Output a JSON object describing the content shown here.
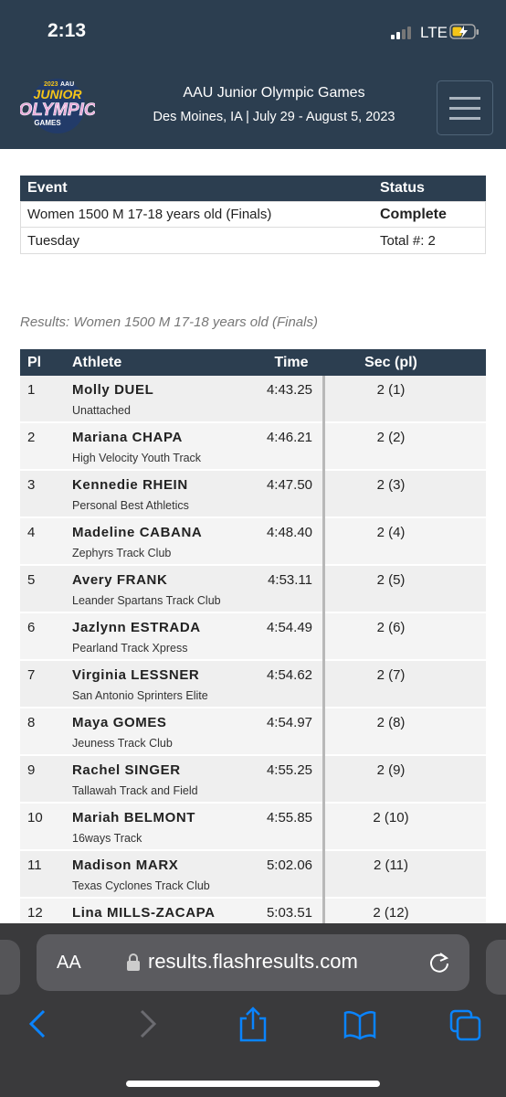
{
  "status_bar": {
    "time": "2:13",
    "network": "LTE"
  },
  "header": {
    "logo": {
      "year": "2023",
      "org": "AAU",
      "line1": "JUNIOR",
      "line2": "OLYMPIC",
      "line3": "GAMES"
    },
    "title": "AAU Junior Olympic Games",
    "subtitle": "Des Moines, IA | July 29 - August 5, 2023"
  },
  "event_table": {
    "headers": [
      "Event",
      "Status"
    ],
    "rows": [
      [
        "Women 1500 M 17-18 years old (Finals)",
        "Complete"
      ],
      [
        "Tuesday",
        "Total #: 2"
      ]
    ]
  },
  "results": {
    "caption": "Results: Women 1500 M 17-18 years old (Finals)",
    "headers": [
      "Pl",
      "Athlete",
      "Time",
      "Sec (pl)"
    ],
    "rows": [
      {
        "pl": "1",
        "athlete": "Molly DUEL",
        "team": "Unattached",
        "time": "4:43.25",
        "sec": "2 (1)"
      },
      {
        "pl": "2",
        "athlete": "Mariana CHAPA",
        "team": "High Velocity Youth Track",
        "time": "4:46.21",
        "sec": "2 (2)"
      },
      {
        "pl": "3",
        "athlete": "Kennedie RHEIN",
        "team": "Personal Best Athletics",
        "time": "4:47.50",
        "sec": "2 (3)"
      },
      {
        "pl": "4",
        "athlete": "Madeline CABANA",
        "team": "Zephyrs Track Club",
        "time": "4:48.40",
        "sec": "2 (4)"
      },
      {
        "pl": "5",
        "athlete": "Avery FRANK",
        "team": "Leander Spartans Track Club",
        "time": "4:53.11",
        "sec": "2 (5)"
      },
      {
        "pl": "6",
        "athlete": "Jazlynn ESTRADA",
        "team": "Pearland Track Xpress",
        "time": "4:54.49",
        "sec": "2 (6)"
      },
      {
        "pl": "7",
        "athlete": "Virginia LESSNER",
        "team": "San Antonio Sprinters Elite",
        "time": "4:54.62",
        "sec": "2 (7)"
      },
      {
        "pl": "8",
        "athlete": "Maya GOMES",
        "team": "Jeuness Track Club",
        "time": "4:54.97",
        "sec": "2 (8)"
      },
      {
        "pl": "9",
        "athlete": "Rachel SINGER",
        "team": "Tallawah Track and Field",
        "time": "4:55.25",
        "sec": "2 (9)"
      },
      {
        "pl": "10",
        "athlete": "Mariah BELMONT",
        "team": "16ways Track",
        "time": "4:55.85",
        "sec": "2 (10)"
      },
      {
        "pl": "11",
        "athlete": "Madison MARX",
        "team": "Texas Cyclones Track Club",
        "time": "5:02.06",
        "sec": "2 (11)"
      },
      {
        "pl": "12",
        "athlete": "Lina MILLS-ZACAPA",
        "time": "5:03.51",
        "sec": "2 (12)"
      }
    ]
  },
  "browser": {
    "text_size": "AA",
    "url": "results.flashresults.com"
  }
}
